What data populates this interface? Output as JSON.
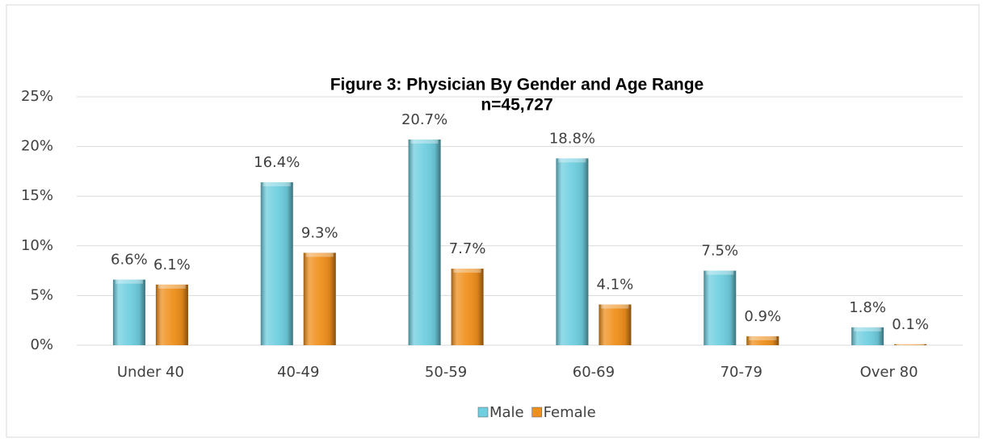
{
  "chart_data": {
    "type": "bar",
    "title": "Figure 3: Physician By Gender and Age Range",
    "subtitle": "n=45,727",
    "categories": [
      "Under 40",
      "40-49",
      "50-59",
      "60-69",
      "70-79",
      "Over 80"
    ],
    "series": [
      {
        "name": "Male",
        "color": "#6fcfe0",
        "values": [
          6.6,
          16.4,
          20.7,
          18.8,
          7.5,
          1.8
        ],
        "value_labels": [
          "6.6%",
          "16.4%",
          "20.7%",
          "18.8%",
          "7.5%",
          "1.8%"
        ]
      },
      {
        "name": "Female",
        "color": "#f0901c",
        "values": [
          6.1,
          9.3,
          7.7,
          4.1,
          0.9,
          0.1
        ],
        "value_labels": [
          "6.1%",
          "9.3%",
          "7.7%",
          "4.1%",
          "0.9%",
          "0.1%"
        ]
      }
    ],
    "ylim": [
      0,
      25
    ],
    "yticks": [
      {
        "value": 0,
        "label": "0%"
      },
      {
        "value": 5,
        "label": "5%"
      },
      {
        "value": 10,
        "label": "10%"
      },
      {
        "value": 15,
        "label": "15%"
      },
      {
        "value": 20,
        "label": "20%"
      },
      {
        "value": 25,
        "label": "25%"
      }
    ],
    "grid": true,
    "legend": "bottom"
  }
}
